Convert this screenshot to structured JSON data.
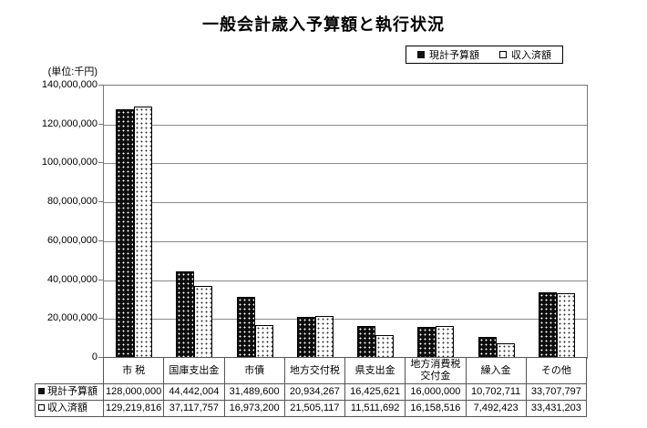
{
  "title": "一般会計歳入予算額と執行状況",
  "unit_label": "(単位:千円)",
  "legend": {
    "items": [
      {
        "marker": "■",
        "label": "現計予算額"
      },
      {
        "marker": "□",
        "label": "収入済額"
      }
    ]
  },
  "chart_data": {
    "type": "bar",
    "title": "一般会計歳入予算額と執行状況",
    "ylabel": "(単位:千円)",
    "xlabel": "",
    "ylim": [
      0,
      140000000
    ],
    "ytick_step": 20000000,
    "ytick_labels": [
      "0",
      "20,000,000",
      "40,000,000",
      "60,000,000",
      "80,000,000",
      "100,000,000",
      "120,000,000",
      "140,000,000"
    ],
    "grid": true,
    "legend_position": "top-right",
    "categories": [
      "市 税",
      "国庫支出金",
      "市債",
      "地方交付税",
      "県支出金",
      "地方消費税交付金",
      "繰入金",
      "その他"
    ],
    "series": [
      {
        "name": "現計予算額",
        "marker": "■",
        "values": [
          128000000,
          44442004,
          31489600,
          20934267,
          16425621,
          16000000,
          10702711,
          33707797
        ]
      },
      {
        "name": "収入済額",
        "marker": "□",
        "values": [
          129219816,
          37117757,
          16973200,
          21505117,
          11511692,
          16158516,
          7492423,
          33431203
        ]
      }
    ]
  },
  "table": {
    "row_headers": [
      {
        "marker": "■",
        "label": "現計予算額"
      },
      {
        "marker": "□",
        "label": "収入済額"
      }
    ],
    "columns": [
      "市 税",
      "国庫支出金",
      "市債",
      "地方交付税",
      "県支出金",
      "地方消費税交付金",
      "繰入金",
      "その他"
    ],
    "rows": [
      [
        "128,000,000",
        "44,442,004",
        "31,489,600",
        "20,934,267",
        "16,425,621",
        "16,000,000",
        "10,702,711",
        "33,707,797"
      ],
      [
        "129,219,816",
        "37,117,757",
        "16,973,200",
        "21,505,117",
        "11,511,692",
        "16,158,516",
        "7,492,423",
        "33,431,203"
      ]
    ]
  },
  "colors": {
    "series1_fill": "#0d0d0d",
    "series2_fill": "#ffffff",
    "bar_border": "#000000",
    "gridline": "#8a8a8a",
    "frame": "#777777",
    "table_border": "#555555",
    "background": "#ffffff",
    "text": "#000000"
  }
}
